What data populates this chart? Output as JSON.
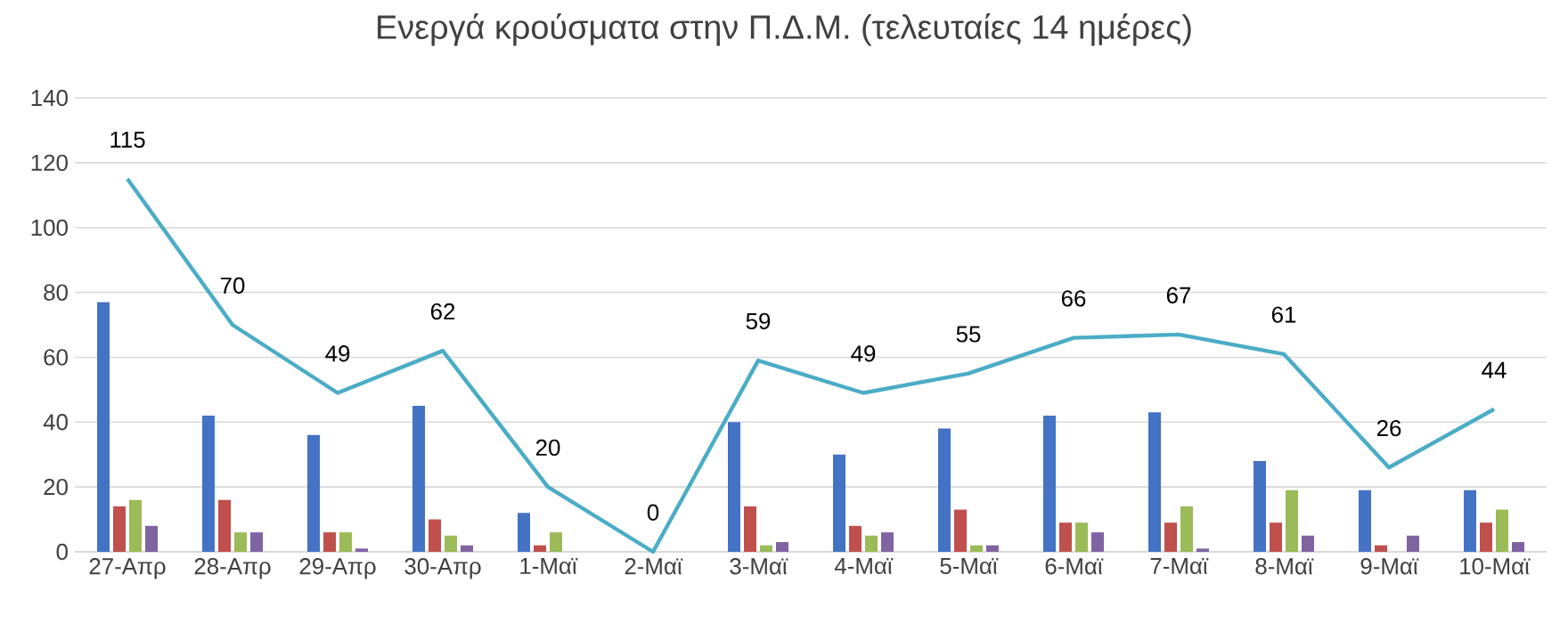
{
  "chart_data": {
    "type": "bar",
    "title": "Ενεργά κρούσματα στην Π.Δ.Μ. (τελευταίες 14 ημέρες)",
    "categories": [
      "27-Απρ",
      "28-Απρ",
      "29-Απρ",
      "30-Απρ",
      "1-Μαϊ",
      "2-Μαϊ",
      "3-Μαϊ",
      "4-Μαϊ",
      "5-Μαϊ",
      "6-Μαϊ",
      "7-Μαϊ",
      "8-Μαϊ",
      "9-Μαϊ",
      "10-Μαϊ"
    ],
    "series": [
      {
        "color": "#4472c4",
        "values": [
          77,
          42,
          36,
          45,
          12,
          0,
          40,
          30,
          38,
          42,
          43,
          28,
          19,
          19
        ]
      },
      {
        "color": "#c0504d",
        "values": [
          14,
          16,
          6,
          10,
          2,
          0,
          14,
          8,
          13,
          9,
          9,
          9,
          2,
          9
        ]
      },
      {
        "color": "#9bbb59",
        "values": [
          16,
          6,
          6,
          5,
          6,
          0,
          2,
          5,
          2,
          9,
          14,
          19,
          0,
          13
        ]
      },
      {
        "color": "#8064a2",
        "values": [
          8,
          6,
          1,
          2,
          0,
          0,
          3,
          6,
          2,
          6,
          1,
          5,
          5,
          3
        ]
      },
      {
        "type": "line",
        "color": "#4bacc6",
        "marker": "none",
        "values": [
          115,
          70,
          49,
          62,
          20,
          0,
          59,
          49,
          55,
          66,
          67,
          61,
          26,
          44
        ],
        "value_labels": [
          "115",
          "70",
          "49",
          "62",
          "20",
          "0",
          "59",
          "49",
          "55",
          "66",
          "67",
          "61",
          "26",
          "44"
        ]
      }
    ],
    "ylim": [
      0,
      140
    ],
    "yticks": [
      0,
      20,
      40,
      60,
      80,
      100,
      120,
      140
    ],
    "grid": "y"
  }
}
